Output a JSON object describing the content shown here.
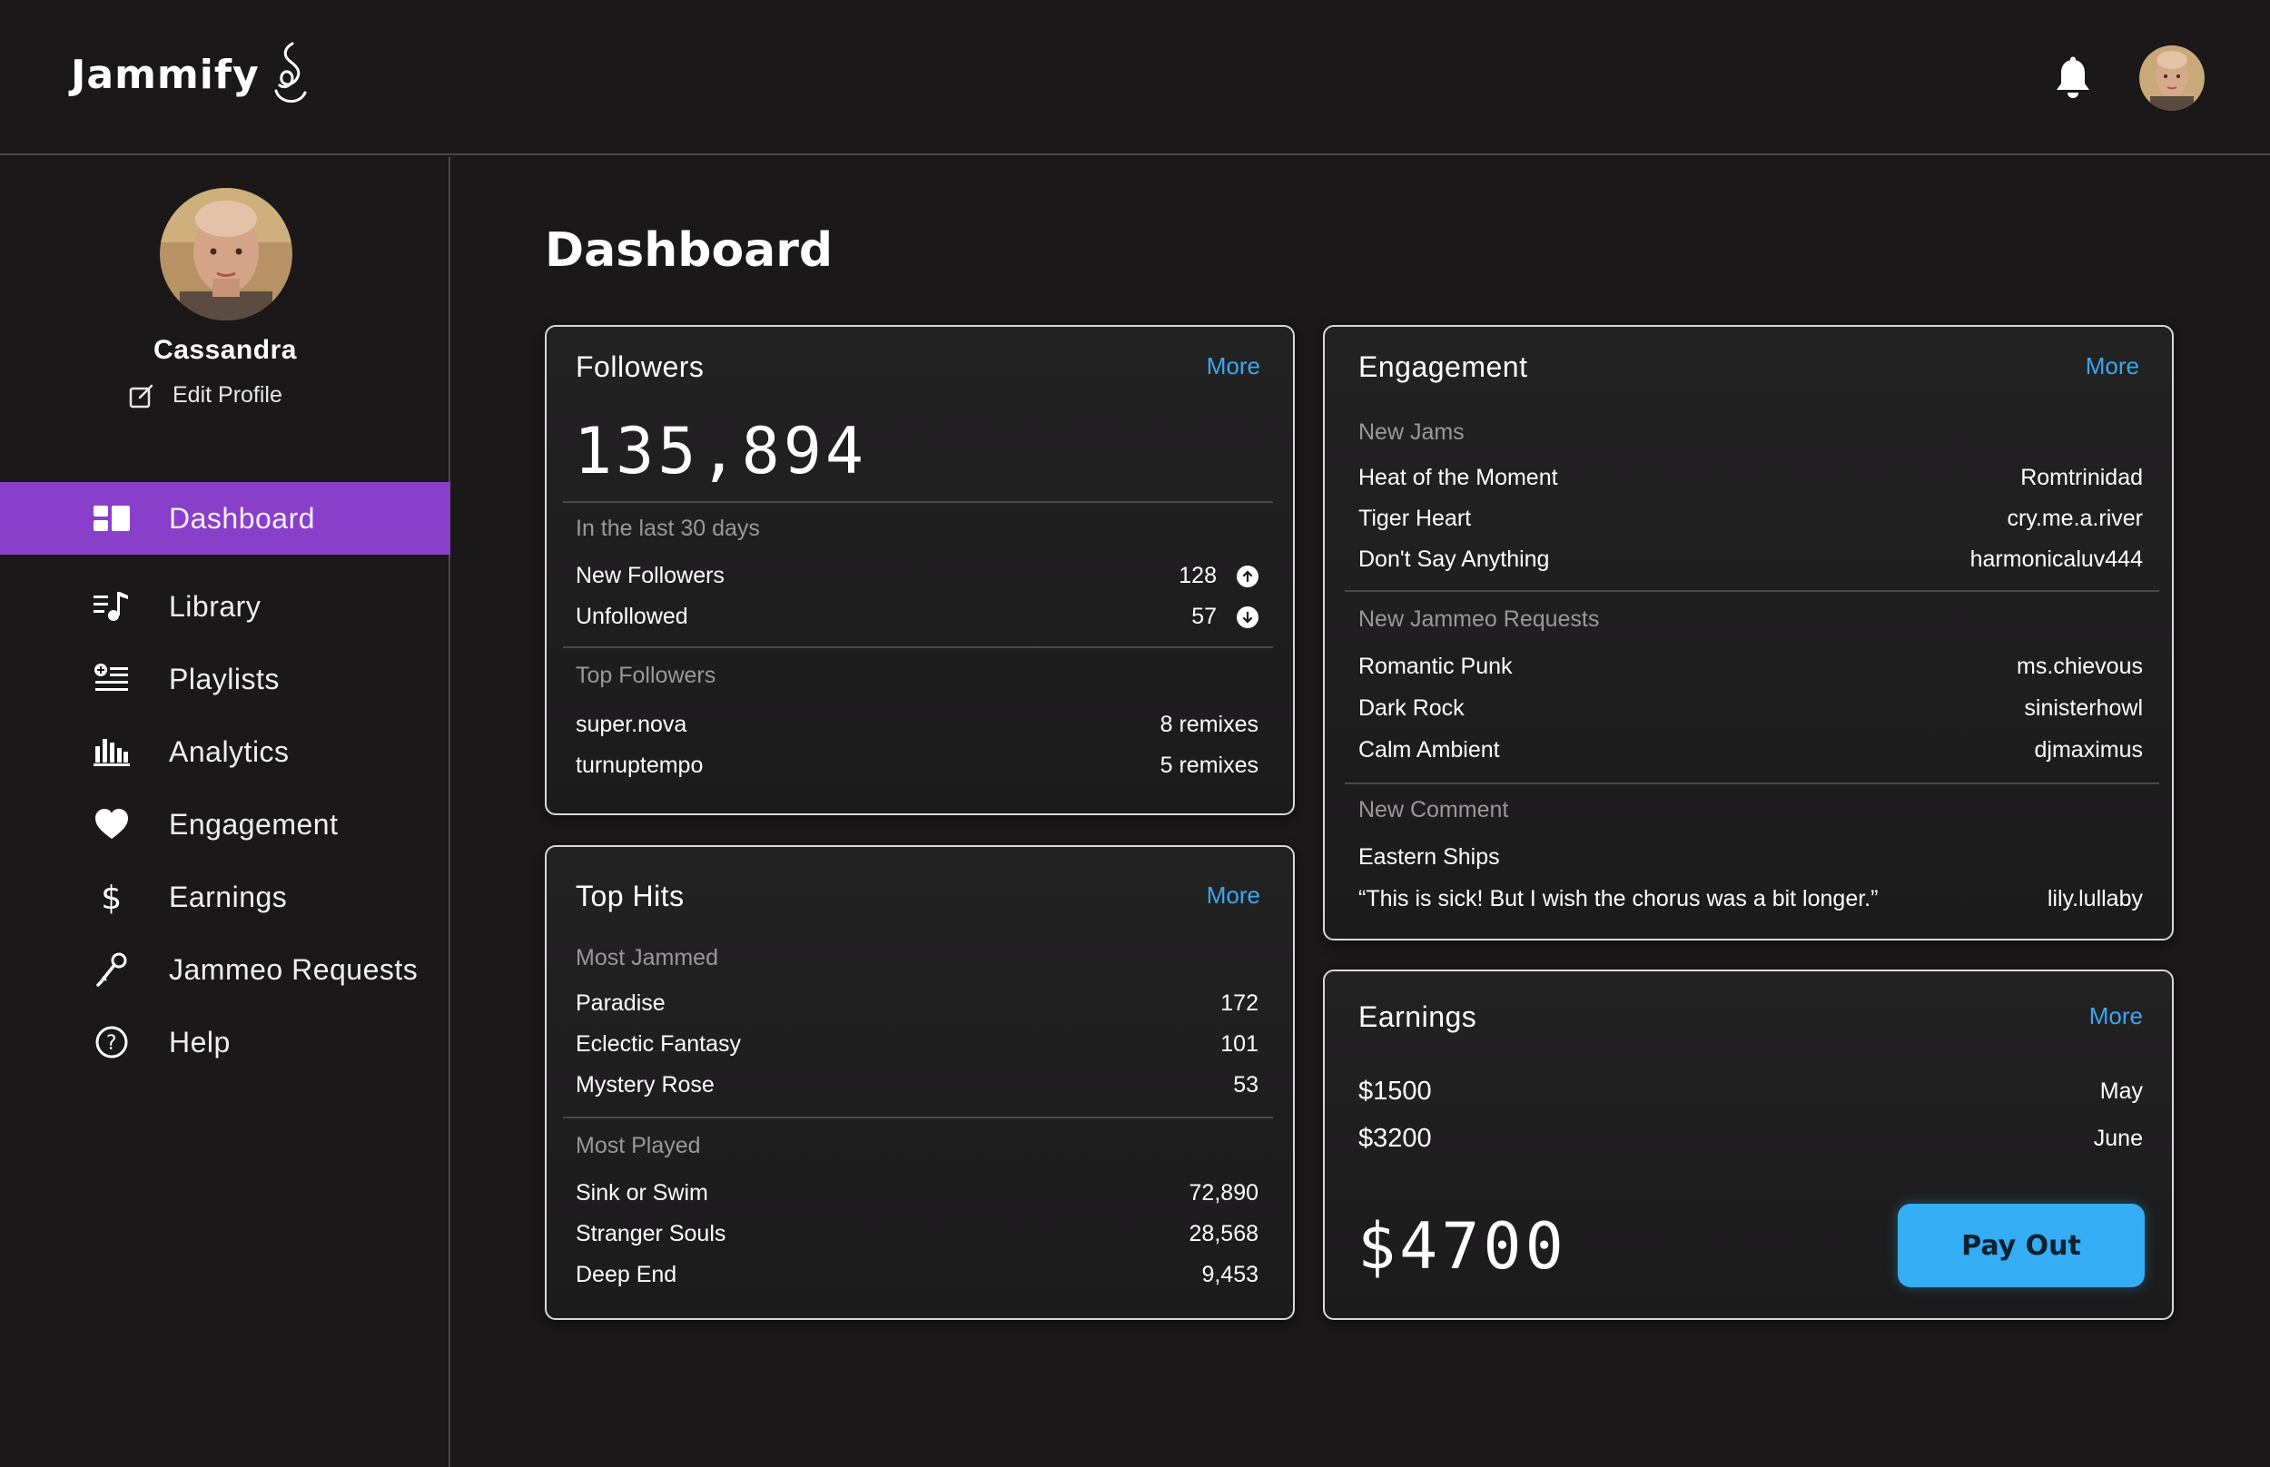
{
  "app": {
    "name": "Jammify"
  },
  "header": {
    "notifications_icon": "bell-icon"
  },
  "profile": {
    "name": "Cassandra",
    "edit_label": "Edit Profile"
  },
  "nav": [
    {
      "label": "Dashboard",
      "icon": "dashboard-icon",
      "active": true
    },
    {
      "label": "Library",
      "icon": "library-icon"
    },
    {
      "label": "Playlists",
      "icon": "playlist-icon"
    },
    {
      "label": "Analytics",
      "icon": "analytics-icon"
    },
    {
      "label": "Engagement",
      "icon": "heart-icon"
    },
    {
      "label": "Earnings",
      "icon": "dollar-icon"
    },
    {
      "label": "Jammeo Requests",
      "icon": "microphone-icon"
    },
    {
      "label": "Help",
      "icon": "help-icon"
    }
  ],
  "page": {
    "title": "Dashboard"
  },
  "followers": {
    "title": "Followers",
    "more": "More",
    "total": "135,894",
    "period_label": "In the last 30 days",
    "stats": [
      {
        "label": "New Followers",
        "value": "128",
        "trend": "up"
      },
      {
        "label": "Unfollowed",
        "value": "57",
        "trend": "down"
      }
    ],
    "top_label": "Top Followers",
    "top": [
      {
        "name": "super.nova",
        "value": "8 remixes"
      },
      {
        "name": "turnuptempo",
        "value": "5 remixes"
      }
    ]
  },
  "top_hits": {
    "title": "Top Hits",
    "more": "More",
    "most_jammed_label": "Most Jammed",
    "most_jammed": [
      {
        "name": "Paradise",
        "value": "172"
      },
      {
        "name": "Eclectic Fantasy",
        "value": "101"
      },
      {
        "name": "Mystery Rose",
        "value": "53"
      }
    ],
    "most_played_label": "Most Played",
    "most_played": [
      {
        "name": "Sink or Swim",
        "value": "72,890"
      },
      {
        "name": "Stranger Souls",
        "value": "28,568"
      },
      {
        "name": "Deep End",
        "value": "9,453"
      }
    ]
  },
  "engagement": {
    "title": "Engagement",
    "more": "More",
    "new_jams_label": "New Jams",
    "new_jams": [
      {
        "name": "Heat of the Moment",
        "user": "Romtrinidad"
      },
      {
        "name": "Tiger Heart",
        "user": "cry.me.a.river"
      },
      {
        "name": "Don't Say Anything",
        "user": "harmonicaluv444"
      }
    ],
    "requests_label": "New Jammeo Requests",
    "requests": [
      {
        "name": "Romantic Punk",
        "user": "ms.chievous"
      },
      {
        "name": "Dark Rock",
        "user": "sinisterhowl"
      },
      {
        "name": "Calm Ambient",
        "user": "djmaximus"
      }
    ],
    "comment_label": "New Comment",
    "comment_song": "Eastern Ships",
    "comment_text": "“This is sick! But I wish the chorus was a bit longer.”",
    "comment_user": "lily.lullaby"
  },
  "earnings": {
    "title": "Earnings",
    "more": "More",
    "items": [
      {
        "amount": "$1500",
        "month": "May"
      },
      {
        "amount": "$3200",
        "month": "June"
      }
    ],
    "total": "$4700",
    "payout_label": "Pay Out"
  },
  "colors": {
    "accent_purple": "#8a3fcb",
    "link_blue": "#3ba7ee",
    "button_blue": "#35adf4",
    "background": "#1a1819"
  }
}
